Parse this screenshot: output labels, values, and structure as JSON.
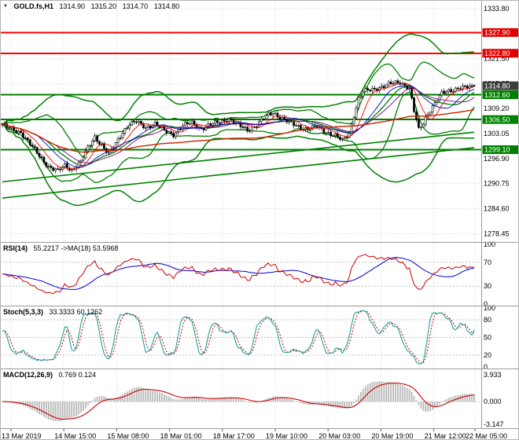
{
  "header": {
    "collapse_icon": "▼",
    "symbol": "GOLD.fs,H1",
    "open": "1314.90",
    "high": "1315.20",
    "low": "1314.70",
    "close": "1314.80"
  },
  "colors": {
    "band_green": "#008000",
    "line_red": "#ff0000",
    "label_red_bg": "#e10000",
    "label_green_bg": "#008000",
    "label_current_bg": "#3c3c3c",
    "grid": "#d9d9d9",
    "candle_up": "#ffffff",
    "candle_down": "#000000",
    "hist_silver": "#b8b8b8"
  },
  "chart_data": {
    "type": "candlestick",
    "symbol": "GOLD.fs,H1",
    "timeframe": "H1",
    "ohlc_display": {
      "open": 1314.9,
      "high": 1315.2,
      "low": 1314.7,
      "close": 1314.8
    },
    "price_axis": {
      "min": 1276.4,
      "max": 1335.7,
      "grid_prices": [
        1333.8,
        1327.65,
        1321.5,
        1315.35,
        1309.2,
        1303.05,
        1296.9,
        1290.75,
        1284.6,
        1278.45
      ],
      "grid_labels": [
        "1333.80",
        "1327.65",
        "1321.50",
        "1315.35",
        "1309.20",
        "1303.05",
        "1296.90",
        "1290.75",
        "1284.60",
        "1278.45"
      ]
    },
    "hlines": [
      {
        "price": 1327.9,
        "label": "1327.90",
        "color": "#ff0000",
        "width": 2
      },
      {
        "price": 1322.8,
        "label": "1322.80",
        "color": "#ff0000",
        "width": 2
      },
      {
        "price": 1312.6,
        "label": "1312.60",
        "color": "#008000",
        "width": 2
      },
      {
        "price": 1306.5,
        "label": "1306.50",
        "color": "#008000",
        "width": 2
      },
      {
        "price": 1299.1,
        "label": "1299.10",
        "color": "#008000",
        "width": 2
      }
    ],
    "current_price": {
      "value": 1314.8,
      "label": "1314.80",
      "bg": "#3c3c3c"
    },
    "trendlines": [
      {
        "i0": 0,
        "p0": 1291.2,
        "i1": 204,
        "p1": 1303.4,
        "color": "#008000",
        "width": 1.6
      },
      {
        "i0": 0,
        "p0": 1287.2,
        "i1": 204,
        "p1": 1299.6,
        "color": "#008000",
        "width": 1.6
      }
    ],
    "candles": {
      "count": 205,
      "anchors": [
        [
          0,
          1305.2
        ],
        [
          4,
          1304.0
        ],
        [
          8,
          1303.4
        ],
        [
          12,
          1300.5
        ],
        [
          16,
          1297.5
        ],
        [
          20,
          1295.0
        ],
        [
          24,
          1293.8
        ],
        [
          27,
          1295.2
        ],
        [
          30,
          1294.1
        ],
        [
          34,
          1296.2
        ],
        [
          37,
          1299.5
        ],
        [
          40,
          1302.3
        ],
        [
          43,
          1300.2
        ],
        [
          46,
          1297.9
        ],
        [
          49,
          1300.6
        ],
        [
          52,
          1303.5
        ],
        [
          55,
          1305.4
        ],
        [
          58,
          1305.9
        ],
        [
          62,
          1304.6
        ],
        [
          66,
          1305.5
        ],
        [
          70,
          1303.7
        ],
        [
          74,
          1302.9
        ],
        [
          78,
          1305.0
        ],
        [
          82,
          1305.7
        ],
        [
          86,
          1304.3
        ],
        [
          90,
          1305.2
        ],
        [
          94,
          1306.0
        ],
        [
          98,
          1306.6
        ],
        [
          102,
          1305.1
        ],
        [
          106,
          1304.0
        ],
        [
          110,
          1305.1
        ],
        [
          114,
          1307.3
        ],
        [
          117,
          1308.3
        ],
        [
          120,
          1307.1
        ],
        [
          124,
          1305.7
        ],
        [
          128,
          1304.9
        ],
        [
          132,
          1304.1
        ],
        [
          136,
          1304.7
        ],
        [
          140,
          1303.5
        ],
        [
          144,
          1302.5
        ],
        [
          147,
          1301.3
        ],
        [
          150,
          1303.1
        ],
        [
          152,
          1307.6
        ],
        [
          154,
          1311.6
        ],
        [
          156,
          1313.3
        ],
        [
          160,
          1313.9
        ],
        [
          164,
          1314.6
        ],
        [
          168,
          1315.3
        ],
        [
          172,
          1315.7
        ],
        [
          176,
          1314.3
        ],
        [
          178,
          1308.6
        ],
        [
          180,
          1303.9
        ],
        [
          182,
          1305.6
        ],
        [
          184,
          1308.1
        ],
        [
          187,
          1310.6
        ],
        [
          190,
          1312.9
        ],
        [
          194,
          1313.7
        ],
        [
          198,
          1314.5
        ],
        [
          201,
          1314.3
        ],
        [
          204,
          1314.8
        ]
      ],
      "noise": {
        "a1": 0.42,
        "f1": 1.93,
        "a2": 0.26,
        "f2": 0.57,
        "wick": 0.55
      },
      "last_ohlc": [
        1314.9,
        1315.2,
        1314.7,
        1314.8
      ]
    },
    "overlays": {
      "bollinger": [
        {
          "period": 20,
          "dev": 2.0,
          "color": "#008000",
          "width": 1.3,
          "draw_mid": true
        },
        {
          "period": 40,
          "dev": 3.2,
          "color": "#008000",
          "width": 1.5,
          "draw_mid": false
        }
      ],
      "moving_averages": [
        {
          "period": 8,
          "color": "#ff0000",
          "width": 0.9
        },
        {
          "period": 16,
          "color": "#0000cc",
          "width": 0.9
        },
        {
          "period": 24,
          "color": "#800080",
          "width": 0.9
        },
        {
          "period": 100,
          "color": "#cc2200",
          "width": 1.4
        }
      ]
    },
    "time_axis": {
      "labels": [
        "13 Mar 2019",
        "14 Mar 15:00",
        "15 Mar 08:00",
        "18 Mar 01:00",
        "18 Mar 17:00",
        "19 Mar 10:00",
        "20 Mar 03:00",
        "20 Mar 19:00",
        "21 Mar 12:00",
        "22 Mar 05:00"
      ]
    },
    "indicators": {
      "rsi": {
        "name": "RSI(14)",
        "values": "55.2217  ->MA(18) 53.5968",
        "period": 14,
        "ma_period": 18,
        "current": 55.2217,
        "ma_current": 53.5968,
        "axis_values": [
          100,
          70,
          30,
          0
        ],
        "axis_labels": [
          "100",
          "70",
          "30",
          "0"
        ],
        "levels": [
          70,
          30
        ],
        "line_color": "#cc0000",
        "ma_color": "#0000cc"
      },
      "stoch": {
        "name": "Stoch(5,3,3)",
        "values": "33.3333 60.1262",
        "k_period": 5,
        "slowing": 3,
        "d_period": 3,
        "current_k": 33.3333,
        "current_d": 60.1262,
        "axis_values": [
          100,
          80,
          50,
          20,
          0
        ],
        "axis_labels": [
          "100",
          "80",
          "50",
          "20",
          "0"
        ],
        "levels": [
          80,
          50,
          20
        ],
        "k_color": "#20a0a0",
        "d_color": "#cc0000"
      },
      "macd": {
        "name": "MACD(12,26,9)",
        "values": "0.769 0.124",
        "fast": 12,
        "slow": 26,
        "signal_period": 9,
        "current_macd": 0.769,
        "current_signal": 0.124,
        "axis_max": 3.933,
        "axis_min": -3.147,
        "axis_labels": [
          "3.933",
          "0.000",
          "-3.147"
        ],
        "hist_color": "#b8b8b8",
        "signal_color": "#cc0000"
      }
    }
  }
}
